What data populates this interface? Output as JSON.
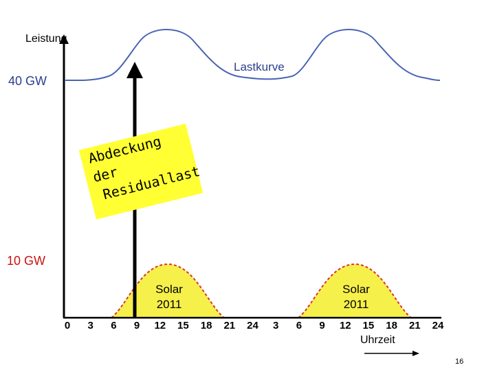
{
  "diagram": {
    "y_axis_label": "Leistung",
    "x_axis_unit": "Uhrzeit",
    "level_high": "40 GW",
    "level_low": "10 GW",
    "load_curve_label": "Lastkurve",
    "solar_labels": [
      {
        "line1": "Solar",
        "line2": "2011"
      },
      {
        "line1": "Solar",
        "line2": "2011"
      }
    ],
    "note_lines": [
      "Abdeckung",
      "der",
      "Residuallast"
    ],
    "x_ticks": [
      "0",
      "3",
      "6",
      "9",
      "12",
      "15",
      "18",
      "21",
      "24",
      "3",
      "6",
      "9",
      "12",
      "15",
      "18",
      "21",
      "24"
    ],
    "page_number": "16",
    "colors": {
      "load_curve": "#4a63b5",
      "solar_fill": "#f6f04a",
      "solar_outline": "#d9342b",
      "note_background": "#ffff33",
      "level_high": "#2b3f8f",
      "level_low": "#cc1111"
    }
  }
}
